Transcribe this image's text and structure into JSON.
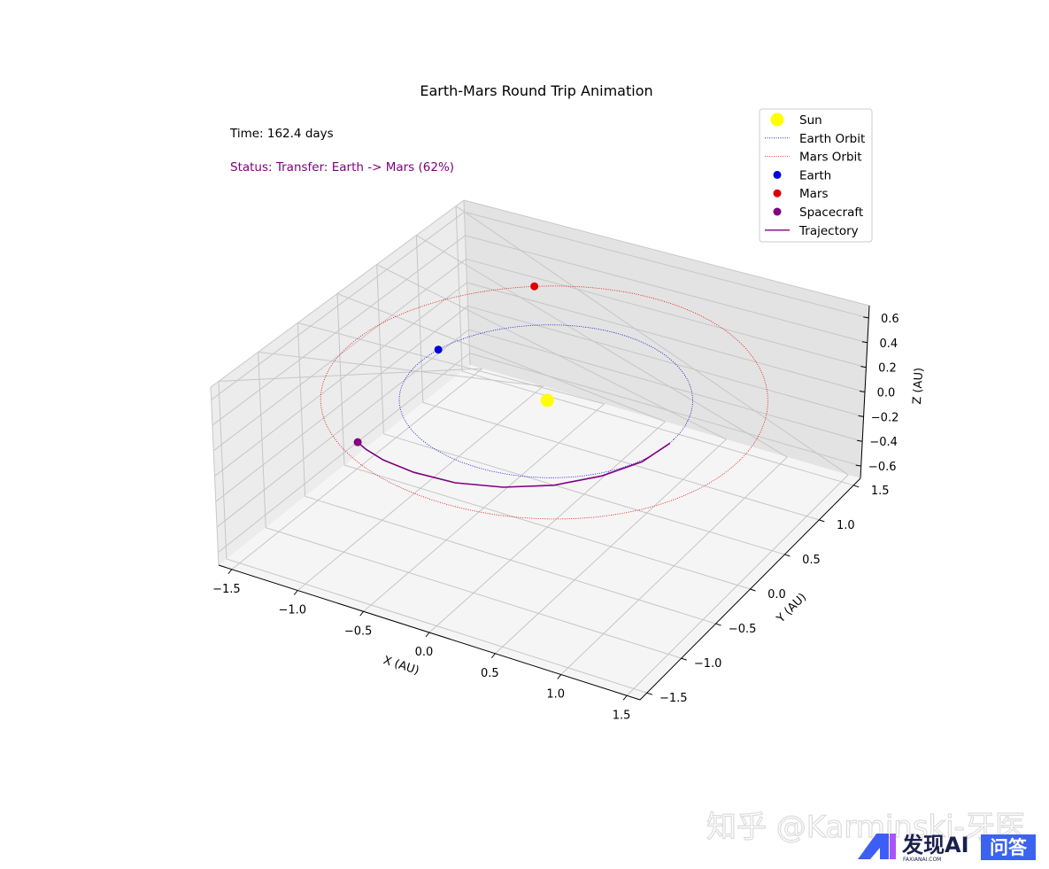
{
  "chart_data": {
    "type": "scatter",
    "projection": "3d",
    "title": "Earth-Mars Round Trip Animation",
    "xlabel": "X (AU)",
    "ylabel": "Y (AU)",
    "zlabel": "Z (AU)",
    "xlim": [
      -1.6,
      1.6
    ],
    "ylim": [
      -1.6,
      1.6
    ],
    "zlim": [
      -0.7,
      0.7
    ],
    "xticks": [
      "−1.5",
      "−1.0",
      "−0.5",
      "0.0",
      "0.5",
      "1.0",
      "1.5"
    ],
    "yticks": [
      "−1.5",
      "−1.0",
      "−0.5",
      "0.0",
      "0.5",
      "1.0",
      "1.5"
    ],
    "zticks": [
      "−0.6",
      "−0.4",
      "−0.2",
      "0.0",
      "0.2",
      "0.4",
      "0.6"
    ],
    "grid": true,
    "legend_position": "top-right",
    "time_text": "Time: 162.4 days",
    "status_text": "Status: Transfer: Earth -> Mars (62%)",
    "status_color": "#800080",
    "series": [
      {
        "name": "Sun",
        "kind": "point",
        "color": "#ffff00",
        "x": 0.0,
        "y": 0.0,
        "z": 0.0
      },
      {
        "name": "Earth Orbit",
        "kind": "orbit",
        "color": "#0000cc",
        "style": "dotted",
        "radius": 1.0
      },
      {
        "name": "Mars Orbit",
        "kind": "orbit",
        "color": "#e00000",
        "style": "dotted",
        "radius": 1.524
      },
      {
        "name": "Earth",
        "kind": "point",
        "color": "#0000dd",
        "x": -0.98,
        "y": 0.2,
        "z": 0.0
      },
      {
        "name": "Mars",
        "kind": "point",
        "color": "#dd0000",
        "x": -0.86,
        "y": 1.26,
        "z": 0.0
      },
      {
        "name": "Spacecraft",
        "kind": "point",
        "color": "#800080",
        "x": -0.81,
        "y": -1.14,
        "z": 0.0
      },
      {
        "name": "Trajectory",
        "kind": "line",
        "color": "#800080",
        "x": [
          1.0,
          0.95,
          0.8,
          0.58,
          0.3,
          0.0,
          -0.3,
          -0.55,
          -0.72,
          -0.81
        ],
        "y": [
          -0.06,
          -0.36,
          -0.66,
          -0.93,
          -1.13,
          -1.25,
          -1.28,
          -1.25,
          -1.19,
          -1.14
        ]
      }
    ]
  },
  "legend": {
    "items": [
      {
        "label": "Sun",
        "marker": "big-dot",
        "color": "#ffff00"
      },
      {
        "label": "Earth Orbit",
        "marker": "dotted-line",
        "color": "#0000cc"
      },
      {
        "label": "Mars Orbit",
        "marker": "dotted-line",
        "color": "#e00000"
      },
      {
        "label": "Earth",
        "marker": "dot",
        "color": "#0000dd"
      },
      {
        "label": "Mars",
        "marker": "dot",
        "color": "#dd0000"
      },
      {
        "label": "Spacecraft",
        "marker": "dot",
        "color": "#800080"
      },
      {
        "label": "Trajectory",
        "marker": "line",
        "color": "#800080"
      }
    ]
  },
  "watermark": {
    "zhihu_text": "知乎 @Karminski-牙医",
    "logo_text": "发现AI",
    "logo_subtext": "FAXIANAI.COM",
    "badge_text": "问答",
    "badge_color": "#3b63f0"
  }
}
